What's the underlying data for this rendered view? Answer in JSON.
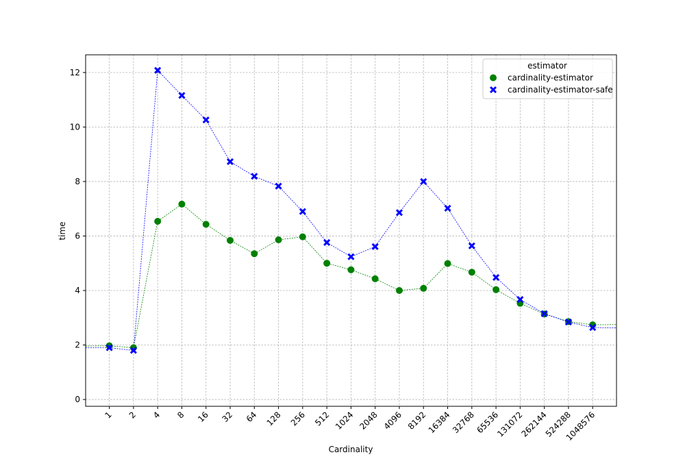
{
  "chart_data": {
    "type": "scatter",
    "xlabel": "Cardinality",
    "ylabel": "time",
    "categories": [
      "1",
      "2",
      "4",
      "8",
      "16",
      "32",
      "64",
      "128",
      "256",
      "512",
      "1024",
      "2048",
      "4096",
      "8192",
      "16384",
      "32768",
      "65536",
      "131072",
      "262144",
      "524288",
      "1048576"
    ],
    "ylim": [
      -0.25,
      12.65
    ],
    "yticks": [
      0,
      2,
      4,
      6,
      8,
      10,
      12
    ],
    "grid": true,
    "legend": {
      "title": "estimator",
      "placement": "top-right"
    },
    "series": [
      {
        "name": "cardinality-estimator",
        "marker": "circle",
        "color": "#008000",
        "values": [
          1.97,
          1.9,
          6.54,
          7.17,
          6.43,
          5.84,
          5.35,
          5.86,
          5.97,
          5.0,
          4.76,
          4.43,
          4.0,
          4.08,
          4.99,
          4.67,
          4.03,
          3.53,
          3.14,
          2.86,
          2.74
        ]
      },
      {
        "name": "cardinality-estimator-safe",
        "marker": "x",
        "color": "#0000ff",
        "values": [
          1.9,
          1.8,
          12.08,
          11.16,
          10.26,
          8.73,
          8.19,
          7.83,
          6.9,
          5.76,
          5.24,
          5.61,
          6.86,
          8.0,
          7.02,
          5.64,
          4.48,
          3.67,
          3.15,
          2.84,
          2.64
        ]
      }
    ],
    "edge_lines": {
      "cardinality-estimator": {
        "left": 1.96,
        "right": 2.75
      },
      "cardinality-estimator-safe": {
        "left": 1.9,
        "right": 2.63
      }
    }
  }
}
